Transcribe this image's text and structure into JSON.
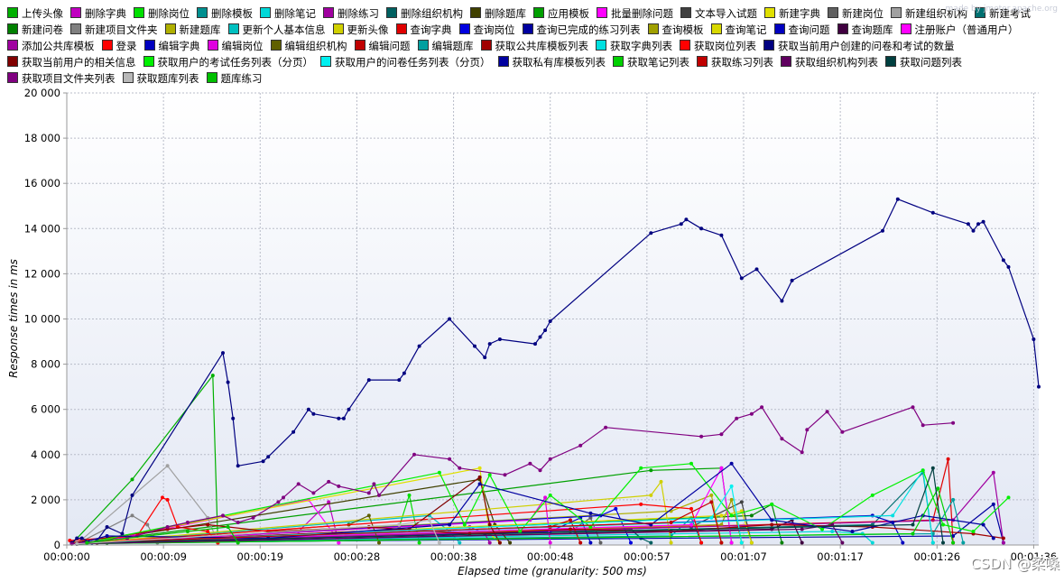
{
  "chart_data": {
    "type": "line",
    "xlabel": "Elapsed time (granularity: 500 ms)",
    "ylabel": "Response times in ms",
    "x_ticks": [
      "00:00:00",
      "00:00:09",
      "00:00:19",
      "00:00:28",
      "00:00:38",
      "00:00:48",
      "00:00:57",
      "00:01:07",
      "00:01:17",
      "00:01:26",
      "00:01:36"
    ],
    "x_tick_seconds": [
      0,
      9.6,
      19.2,
      28.8,
      38.4,
      48,
      57.6,
      67.2,
      76.8,
      86.4,
      96
    ],
    "xlim_seconds": [
      0,
      96.5
    ],
    "y_ticks": [
      "0",
      "2 000",
      "4 000",
      "6 000",
      "8 000",
      "10 000",
      "12 000",
      "14 000",
      "16 000",
      "18 000",
      "20 000"
    ],
    "ylim": [
      0,
      20000
    ],
    "grid": true,
    "legend_position": "top",
    "series": [
      {
        "name": "上传头像",
        "color": "#00b000",
        "x": [
          0.5,
          6.5,
          14.5,
          15
        ],
        "y": [
          50,
          2900,
          7500,
          100
        ]
      },
      {
        "name": "删除字典",
        "color": "#c000c0",
        "x": [
          2,
          23,
          26,
          27
        ],
        "y": [
          100,
          600,
          1900,
          100
        ]
      },
      {
        "name": "删除岗位",
        "color": "#00e000",
        "x": [
          1,
          33,
          34,
          35
        ],
        "y": [
          50,
          800,
          2200,
          100
        ]
      },
      {
        "name": "删除模板",
        "color": "#009090",
        "x": [
          3,
          60,
          62,
          63
        ],
        "y": [
          100,
          400,
          1200,
          100
        ]
      },
      {
        "name": "删除笔记",
        "color": "#00d8d8",
        "x": [
          2,
          76,
          79,
          80
        ],
        "y": [
          100,
          600,
          500,
          100
        ]
      },
      {
        "name": "删除练习",
        "color": "#a000a0",
        "x": [
          1,
          40,
          41.5,
          42
        ],
        "y": [
          50,
          800,
          500,
          100
        ]
      },
      {
        "name": "删除组织机构",
        "color": "#006060",
        "x": [
          4,
          56,
          57,
          58
        ],
        "y": [
          100,
          700,
          300,
          100
        ]
      },
      {
        "name": "删除题库",
        "color": "#404000",
        "x": [
          2,
          41,
          42.5,
          44
        ],
        "y": [
          100,
          2900,
          900,
          100
        ]
      },
      {
        "name": "应用模板",
        "color": "#00a000",
        "x": [
          1,
          58,
          65,
          66
        ],
        "y": [
          50,
          3300,
          3400,
          100
        ]
      },
      {
        "name": "批量删除问题",
        "color": "#ff00ff",
        "x": [
          3,
          24,
          26.5,
          27
        ],
        "y": [
          100,
          2000,
          500,
          100
        ]
      },
      {
        "name": "文本导入试题",
        "color": "#404040",
        "x": [
          1,
          62,
          67,
          68
        ],
        "y": [
          50,
          800,
          1900,
          100
        ]
      },
      {
        "name": "新建字典",
        "color": "#e0e000",
        "x": [
          2,
          41,
          42,
          43
        ],
        "y": [
          100,
          3400,
          500,
          100
        ]
      },
      {
        "name": "新建岗位",
        "color": "#606060",
        "x": [
          3,
          50,
          52,
          53
        ],
        "y": [
          100,
          600,
          1200,
          100
        ]
      },
      {
        "name": "新建组织机构",
        "color": "#a0a0a0",
        "x": [
          1,
          10,
          14,
          15
        ],
        "y": [
          50,
          3500,
          1200,
          100
        ]
      },
      {
        "name": "新建考试",
        "color": "#007070",
        "x": [
          2,
          80,
          85,
          86
        ],
        "y": [
          100,
          900,
          3200,
          100
        ]
      },
      {
        "name": "新建问卷",
        "color": "#008000",
        "x": [
          4,
          68,
          70,
          71
        ],
        "y": [
          100,
          1300,
          1800,
          100
        ]
      },
      {
        "name": "新建项目文件夹",
        "color": "#808080",
        "x": [
          1,
          6.5,
          8,
          9
        ],
        "y": [
          50,
          1300,
          900,
          100
        ]
      },
      {
        "name": "新建题库",
        "color": "#b0b000",
        "x": [
          2,
          60,
          64,
          65
        ],
        "y": [
          100,
          1500,
          2200,
          100
        ]
      },
      {
        "name": "更新个人基本信息",
        "color": "#00c0c0",
        "x": [
          3,
          36,
          38,
          39
        ],
        "y": [
          100,
          1300,
          600,
          100
        ]
      },
      {
        "name": "更新头像",
        "color": "#d0d000",
        "x": [
          1,
          58,
          59,
          60
        ],
        "y": [
          50,
          2200,
          2800,
          100
        ]
      },
      {
        "name": "查询字典",
        "color": "#e00000",
        "x": [
          2,
          86,
          87.5,
          88
        ],
        "y": [
          100,
          1100,
          3800,
          100
        ]
      },
      {
        "name": "查询岗位",
        "color": "#0000e0",
        "x": [
          1,
          53,
          54.5,
          56
        ],
        "y": [
          50,
          1300,
          1600,
          100
        ]
      },
      {
        "name": "查询已完成的练习列表",
        "color": "#0000a0",
        "x": [
          3,
          88,
          92,
          93
        ],
        "y": [
          100,
          400,
          1800,
          100
        ]
      },
      {
        "name": "查询模板",
        "color": "#a0a000",
        "x": [
          2,
          65,
          66,
          67
        ],
        "y": [
          100,
          900,
          2000,
          100
        ]
      },
      {
        "name": "查询笔记",
        "color": "#d8d800",
        "x": [
          1,
          65,
          67,
          68
        ],
        "y": [
          50,
          1300,
          1500,
          100
        ]
      },
      {
        "name": "查询问题",
        "color": "#0000c0",
        "x": [
          2,
          48,
          51,
          52
        ],
        "y": [
          100,
          600,
          1200,
          100
        ]
      },
      {
        "name": "查询题库",
        "color": "#400040",
        "x": [
          1,
          70,
          72,
          73
        ],
        "y": [
          50,
          700,
          1100,
          100
        ]
      },
      {
        "name": "注册账户（普通用户）",
        "color": "#ff00ff",
        "x": [
          2,
          62,
          65,
          66
        ],
        "y": [
          100,
          900,
          3400,
          100
        ]
      },
      {
        "name": "添加公共库模板",
        "color": "#a000a0",
        "x": [
          3,
          88,
          92,
          93
        ],
        "y": [
          100,
          1100,
          3200,
          100
        ]
      },
      {
        "name": "登录",
        "color": "#ff0000",
        "x": [
          0.3,
          7,
          9.5,
          10,
          11,
          14,
          15
        ],
        "y": [
          200,
          400,
          2100,
          2000,
          800,
          600,
          100
        ]
      },
      {
        "name": "编辑字典",
        "color": "#0000c0",
        "x": [
          2,
          80,
          82,
          83
        ],
        "y": [
          100,
          1300,
          1000,
          100
        ]
      },
      {
        "name": "编辑岗位",
        "color": "#e000e0",
        "x": [
          1,
          46,
          47.5,
          48
        ],
        "y": [
          50,
          1100,
          2100,
          100
        ]
      },
      {
        "name": "编辑组织机构",
        "color": "#606000",
        "x": [
          3,
          28,
          30,
          31
        ],
        "y": [
          100,
          900,
          1300,
          100
        ]
      },
      {
        "name": "编辑问题",
        "color": "#c00000",
        "x": [
          2,
          48,
          50,
          51
        ],
        "y": [
          100,
          800,
          1100,
          100
        ]
      },
      {
        "name": "编辑题库",
        "color": "#00a0a0",
        "x": [
          1,
          86,
          88,
          89
        ],
        "y": [
          50,
          500,
          2000,
          100
        ]
      },
      {
        "name": "获取公共库模板列表",
        "color": "#a00000",
        "x": [
          0.5,
          10,
          14,
          20,
          30,
          40,
          50,
          60,
          70,
          80,
          90,
          93
        ],
        "y": [
          100,
          700,
          900,
          600,
          800,
          500,
          700,
          600,
          900,
          800,
          500,
          300
        ]
      },
      {
        "name": "获取字典列表",
        "color": "#00e0e0",
        "x": [
          2,
          82,
          85,
          86
        ],
        "y": [
          100,
          1300,
          3300,
          100
        ]
      },
      {
        "name": "获取岗位列表",
        "color": "#ff0000",
        "x": [
          1,
          57,
          62,
          63
        ],
        "y": [
          50,
          1800,
          1600,
          100
        ]
      },
      {
        "name": "获取当前用户创建的问卷和考试的数量",
        "color": "#000080",
        "x": [
          0.5,
          1,
          1.5,
          2.5,
          3,
          4,
          5.5,
          6.5,
          15.5,
          16,
          16.5,
          17,
          19.5,
          20,
          22.5,
          24,
          24.5,
          27,
          27.5,
          28,
          30,
          33,
          33.5,
          35,
          38,
          40.5,
          41.5,
          42,
          43,
          46.5,
          47,
          47.5,
          48,
          58,
          61,
          61.5,
          63,
          65,
          67,
          68.5,
          71,
          72,
          81,
          82.5,
          86,
          89.5,
          90,
          90.5,
          91,
          93,
          93.5,
          96,
          96.5
        ],
        "y": [
          100,
          300,
          300,
          100,
          200,
          800,
          500,
          2200,
          8500,
          7200,
          5600,
          3500,
          3700,
          3900,
          5000,
          6000,
          5800,
          5600,
          5600,
          6000,
          7300,
          7300,
          7600,
          8800,
          10000,
          8800,
          8300,
          8900,
          9100,
          8900,
          9200,
          9500,
          9900,
          13800,
          14200,
          14400,
          14000,
          13700,
          11800,
          12200,
          10800,
          11700,
          13900,
          15300,
          14700,
          14200,
          13900,
          14200,
          14300,
          12600,
          12300,
          9100,
          7000
        ]
      },
      {
        "name": "获取当前用户的相关信息",
        "color": "#800000",
        "x": [
          1,
          34,
          41,
          42,
          43
        ],
        "y": [
          50,
          700,
          3000,
          900,
          100
        ]
      },
      {
        "name": "获取用户的考试任务列表（分页）",
        "color": "#00f000",
        "x": [
          2,
          37,
          39.5,
          42,
          45,
          48,
          52,
          57,
          62,
          66,
          70,
          75,
          80,
          85,
          87,
          90,
          93.5
        ],
        "y": [
          100,
          3200,
          900,
          3100,
          600,
          2200,
          800,
          3400,
          3600,
          1300,
          1800,
          700,
          2200,
          3300,
          900,
          600,
          2100
        ]
      },
      {
        "name": "获取用户的问卷任务列表（分页）",
        "color": "#00f0f0",
        "x": [
          1,
          64,
          66,
          67
        ],
        "y": [
          50,
          1200,
          2600,
          100
        ]
      },
      {
        "name": "获取私有库模板列表",
        "color": "#0000a0",
        "x": [
          1,
          4,
          20,
          38,
          41,
          52,
          58,
          66,
          70,
          78,
          85,
          91,
          92
        ],
        "y": [
          50,
          400,
          300,
          900,
          2700,
          1400,
          900,
          3600,
          1100,
          600,
          1300,
          900,
          300
        ]
      },
      {
        "name": "获取笔记列表",
        "color": "#00d000",
        "x": [
          1,
          84,
          86.5,
          88
        ],
        "y": [
          50,
          500,
          2500,
          100
        ]
      },
      {
        "name": "获取练习列表",
        "color": "#c00000",
        "x": [
          2,
          60,
          64,
          65
        ],
        "y": [
          100,
          1000,
          1900,
          100
        ]
      },
      {
        "name": "获取组织机构列表",
        "color": "#600060",
        "x": [
          1,
          73,
          76,
          77
        ],
        "y": [
          50,
          700,
          900,
          100
        ]
      },
      {
        "name": "获取问题列表",
        "color": "#004040",
        "x": [
          2,
          84,
          86,
          87
        ],
        "y": [
          100,
          900,
          3400,
          100
        ]
      },
      {
        "name": "获取项目文件夹列表",
        "color": "#800080",
        "x": [
          0.5,
          6,
          10,
          12,
          15.5,
          17,
          18.5,
          21,
          21.5,
          23,
          24.5,
          26,
          27,
          30,
          30.5,
          31,
          34.5,
          38,
          39,
          43.5,
          46,
          47,
          48,
          51,
          53.5,
          63,
          65,
          66.5,
          68,
          69,
          71,
          73,
          73.5,
          75.5,
          77,
          84,
          85,
          88
        ],
        "y": [
          50,
          300,
          800,
          1000,
          1300,
          1000,
          1200,
          1900,
          2100,
          2700,
          2300,
          2800,
          2600,
          2300,
          2700,
          2200,
          4000,
          3800,
          3400,
          3100,
          3600,
          3300,
          3800,
          4400,
          5200,
          4800,
          4900,
          5600,
          5800,
          6100,
          4700,
          4100,
          5100,
          5900,
          5000,
          6100,
          5300,
          5400
        ]
      },
      {
        "name": "获取题库列表",
        "color": "#b8b8b8",
        "x": [
          1,
          33,
          36,
          37
        ],
        "y": [
          50,
          900,
          1100,
          100
        ]
      },
      {
        "name": "题库练习",
        "color": "#00c000",
        "x": [
          2,
          12,
          16,
          17
        ],
        "y": [
          100,
          600,
          800,
          100
        ]
      }
    ]
  },
  "watermark": {
    "top_right": "made by jmeter.apache.org",
    "bottom_right": "CSDN @柔嗓"
  }
}
